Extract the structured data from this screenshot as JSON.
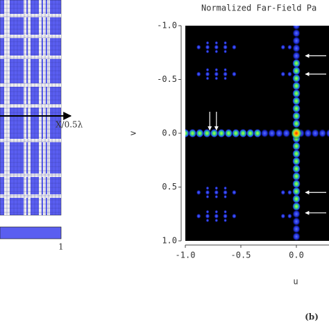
{
  "chart_data": {
    "type": "heatmap",
    "title": "Normalized Far-Field Pa",
    "xlabel": "u",
    "ylabel": "v",
    "xlim": [
      -1,
      1
    ],
    "ylim": [
      -1,
      1
    ],
    "y_inverted": true,
    "xticks": [
      {
        "value": -1,
        "label": "-1.0"
      },
      {
        "value": -0.5,
        "label": "-0.5"
      },
      {
        "value": 0,
        "label": "0.0"
      }
    ],
    "yticks": [
      {
        "value": -1,
        "label": "-1.0"
      },
      {
        "value": -0.5,
        "label": "-0.5"
      },
      {
        "value": 0,
        "label": "0.0"
      },
      {
        "value": 0.5,
        "label": "0.5"
      },
      {
        "value": 1,
        "label": "1.0"
      }
    ],
    "array_axis_label": "X/0.5λ",
    "colorbar_label": "1",
    "panel_label": "(b)"
  }
}
